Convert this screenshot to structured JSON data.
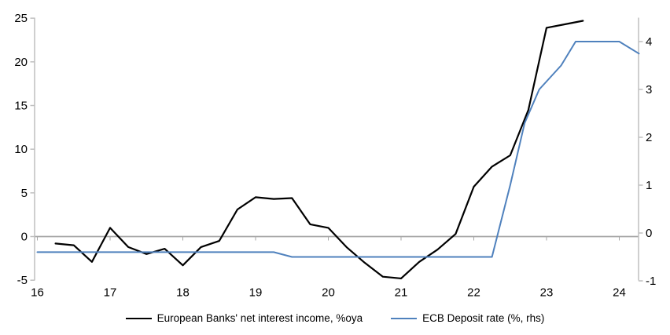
{
  "chart_data": {
    "type": "line",
    "title": "",
    "legend_position": "bottom",
    "dual_axis": true,
    "x_axis": {
      "tick_values": [
        16,
        17,
        18,
        19,
        20,
        21,
        22,
        23,
        24
      ],
      "tick_labels": [
        "16",
        "17",
        "18",
        "19",
        "20",
        "21",
        "22",
        "23",
        "24"
      ],
      "range": [
        16,
        24.27
      ],
      "grid": false
    },
    "y_axis_left": {
      "tick_values": [
        25,
        20,
        15,
        10,
        5,
        0,
        -5
      ],
      "tick_labels": [
        "25",
        "20",
        "15",
        "10",
        "5",
        "0",
        "-5"
      ],
      "range": [
        -5,
        25
      ],
      "grid": false,
      "zero_line": true
    },
    "y_axis_right": {
      "tick_values": [
        4,
        3,
        2,
        1,
        0,
        -1
      ],
      "tick_labels": [
        "4",
        "3",
        "2",
        "1",
        "0",
        "-1"
      ],
      "range": [
        -1,
        4.5
      ],
      "grid": false
    },
    "series": [
      {
        "name": "European Banks' net interest income, %oya",
        "axis": "left",
        "color": "#000000",
        "stroke_width": 2.2,
        "x": [
          16.25,
          16.5,
          16.75,
          17.0,
          17.25,
          17.5,
          17.75,
          18.0,
          18.25,
          18.5,
          18.75,
          19.0,
          19.25,
          19.5,
          19.75,
          20.0,
          20.25,
          20.5,
          20.75,
          21.0,
          21.25,
          21.5,
          21.75,
          22.0,
          22.25,
          22.5,
          22.75,
          23.0,
          23.25,
          23.5
        ],
        "values": [
          -0.8,
          -1.0,
          -2.9,
          1.0,
          -1.2,
          -2.0,
          -1.4,
          -3.3,
          -1.2,
          -0.5,
          3.1,
          4.5,
          4.3,
          4.4,
          1.4,
          1.0,
          -1.2,
          -3.0,
          -4.6,
          -4.8,
          -2.9,
          -1.5,
          0.3,
          5.7,
          8.0,
          9.3,
          14.5,
          23.9,
          24.3,
          24.7
        ]
      },
      {
        "name": "ECB Deposit rate (%, rhs)",
        "axis": "right",
        "color": "#4f81bd",
        "stroke_width": 2,
        "x": [
          16.0,
          19.25,
          19.5,
          22.25,
          22.5,
          22.7,
          22.9,
          23.2,
          23.4,
          24.0,
          24.27
        ],
        "values": [
          -0.4,
          -0.4,
          -0.5,
          -0.5,
          1.0,
          2.3,
          3.0,
          3.5,
          4.0,
          4.0,
          3.75
        ]
      }
    ],
    "colors": {
      "zero_line": "#a6a6a6",
      "axis": "#bfbfbf",
      "tick_text": "#000000",
      "background": "#ffffff"
    }
  }
}
